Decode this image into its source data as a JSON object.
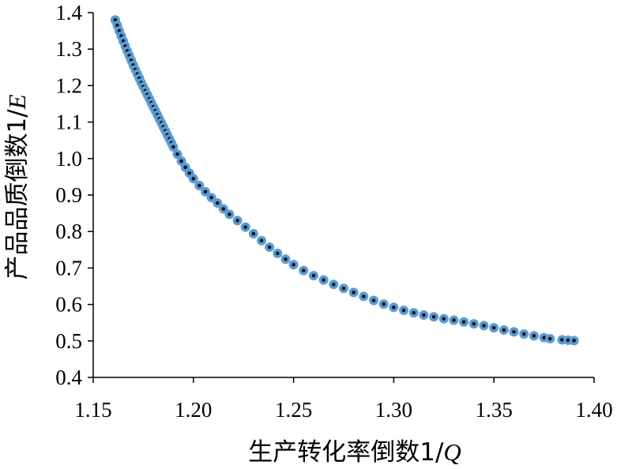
{
  "chart_data": {
    "type": "scatter",
    "title": "",
    "xlabel": "生产转化率倒数1/Q",
    "ylabel": "产品品质倒数1/E",
    "xlabel_parts": {
      "text": "生产转化率倒数1/",
      "var": "Q"
    },
    "ylabel_parts": {
      "text": "产品品质倒数1/",
      "var": "E"
    },
    "xlim": [
      1.15,
      1.4
    ],
    "ylim": [
      0.4,
      1.4
    ],
    "xticks": [
      "1.15",
      "1.20",
      "1.25",
      "1.30",
      "1.35",
      "1.40"
    ],
    "yticks": [
      "0.4",
      "0.5",
      "0.6",
      "0.7",
      "0.8",
      "0.9",
      "1.0",
      "1.1",
      "1.2",
      "1.3",
      "1.4"
    ],
    "grid": false,
    "legend": "none",
    "marker_fill": "#5b9bd5",
    "marker_edge": "#111111",
    "series": [
      {
        "points": [
          [
            1.161,
            1.38
          ],
          [
            1.162,
            1.365
          ],
          [
            1.163,
            1.35
          ],
          [
            1.164,
            1.336
          ],
          [
            1.165,
            1.322
          ],
          [
            1.166,
            1.308
          ],
          [
            1.167,
            1.295
          ],
          [
            1.168,
            1.282
          ],
          [
            1.169,
            1.269
          ],
          [
            1.17,
            1.256
          ],
          [
            1.171,
            1.244
          ],
          [
            1.172,
            1.232
          ],
          [
            1.173,
            1.22
          ],
          [
            1.174,
            1.208
          ],
          [
            1.175,
            1.197
          ],
          [
            1.176,
            1.186
          ],
          [
            1.177,
            1.175
          ],
          [
            1.178,
            1.164
          ],
          [
            1.179,
            1.153
          ],
          [
            1.18,
            1.142
          ],
          [
            1.181,
            1.131
          ],
          [
            1.182,
            1.12
          ],
          [
            1.183,
            1.109
          ],
          [
            1.184,
            1.098
          ],
          [
            1.185,
            1.087
          ],
          [
            1.186,
            1.076
          ],
          [
            1.187,
            1.065
          ],
          [
            1.188,
            1.054
          ],
          [
            1.189,
            1.043
          ],
          [
            1.19,
            1.032
          ],
          [
            1.192,
            1.012
          ],
          [
            1.194,
            0.993
          ],
          [
            1.196,
            0.976
          ],
          [
            1.198,
            0.96
          ],
          [
            1.2,
            0.945
          ],
          [
            1.203,
            0.926
          ],
          [
            1.206,
            0.909
          ],
          [
            1.209,
            0.893
          ],
          [
            1.212,
            0.878
          ],
          [
            1.215,
            0.862
          ],
          [
            1.218,
            0.847
          ],
          [
            1.222,
            0.83
          ],
          [
            1.226,
            0.812
          ],
          [
            1.23,
            0.794
          ],
          [
            1.234,
            0.775
          ],
          [
            1.238,
            0.757
          ],
          [
            1.242,
            0.74
          ],
          [
            1.246,
            0.724
          ],
          [
            1.25,
            0.709
          ],
          [
            1.255,
            0.693
          ],
          [
            1.26,
            0.679
          ],
          [
            1.265,
            0.667
          ],
          [
            1.27,
            0.655
          ],
          [
            1.275,
            0.644
          ],
          [
            1.28,
            0.633
          ],
          [
            1.285,
            0.622
          ],
          [
            1.29,
            0.611
          ],
          [
            1.295,
            0.601
          ],
          [
            1.3,
            0.592
          ],
          [
            1.305,
            0.584
          ],
          [
            1.31,
            0.577
          ],
          [
            1.315,
            0.571
          ],
          [
            1.32,
            0.566
          ],
          [
            1.325,
            0.561
          ],
          [
            1.33,
            0.557
          ],
          [
            1.335,
            0.552
          ],
          [
            1.34,
            0.547
          ],
          [
            1.345,
            0.542
          ],
          [
            1.35,
            0.536
          ],
          [
            1.355,
            0.53
          ],
          [
            1.36,
            0.525
          ],
          [
            1.365,
            0.519
          ],
          [
            1.37,
            0.514
          ],
          [
            1.375,
            0.509
          ],
          [
            1.378,
            0.506
          ],
          [
            1.384,
            0.503
          ],
          [
            1.387,
            0.502
          ],
          [
            1.39,
            0.501
          ]
        ]
      }
    ]
  }
}
